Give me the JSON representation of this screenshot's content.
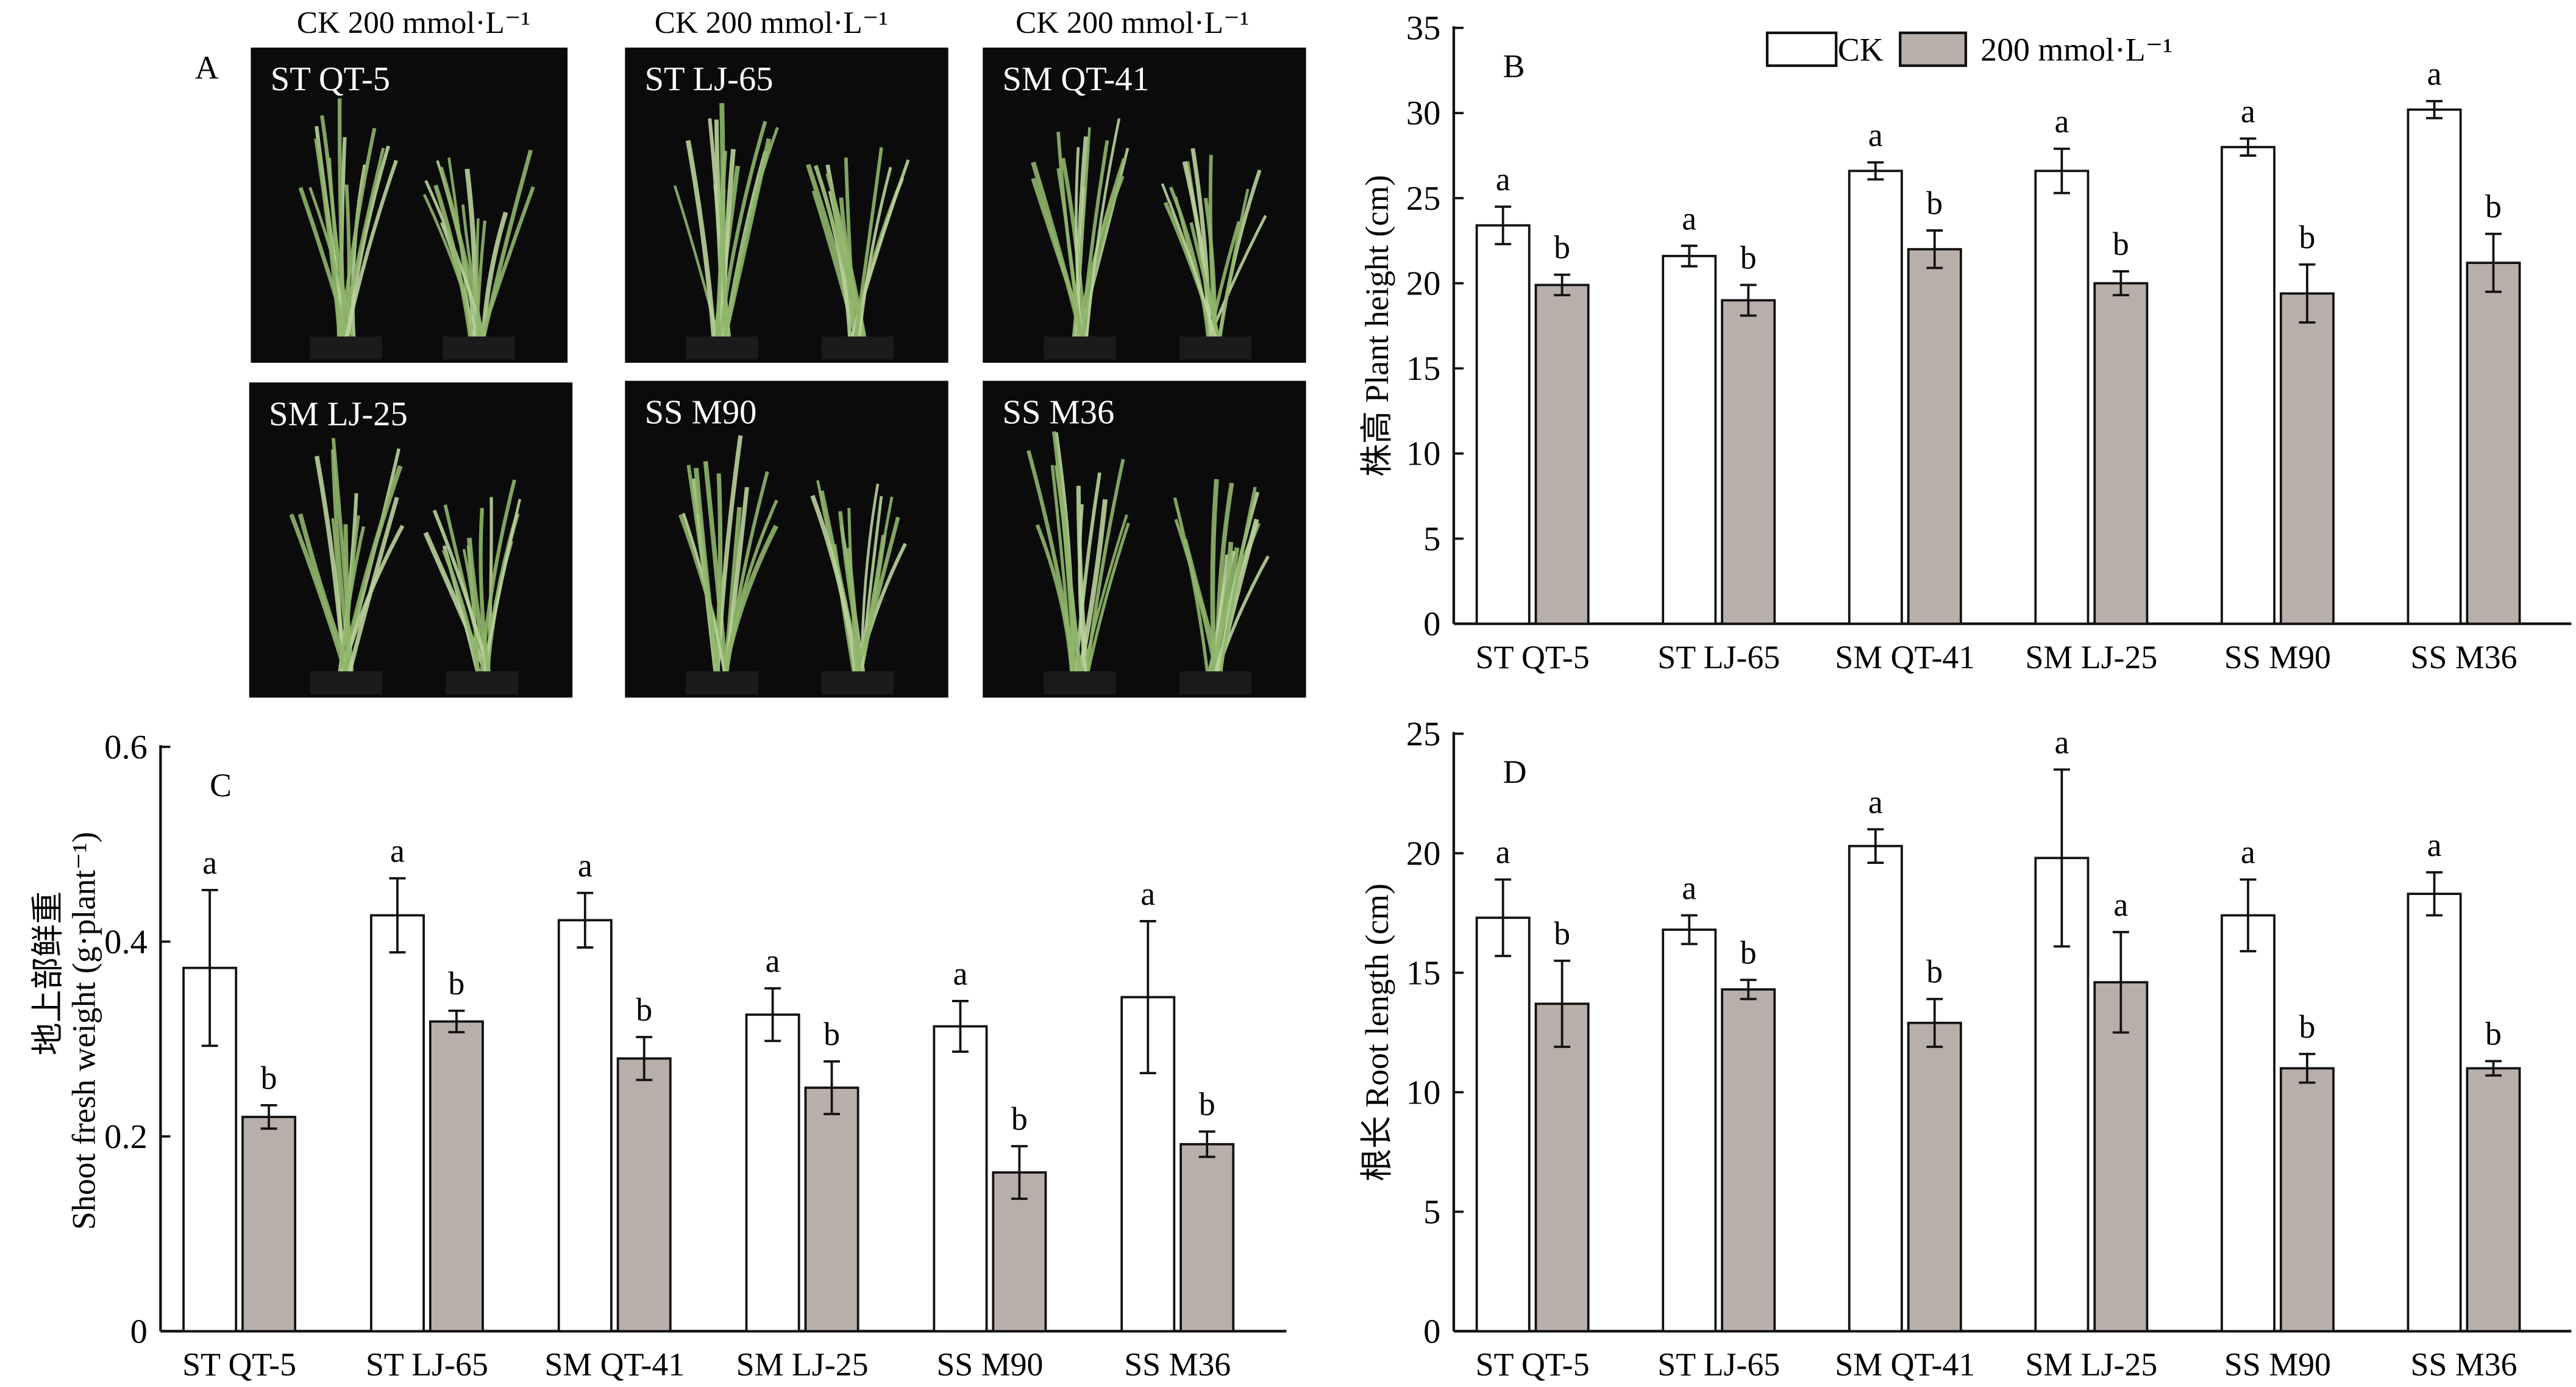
{
  "colors": {
    "ck": "#ffffff",
    "salt": "#b8aeaa",
    "axis": "#111111",
    "photo_bg": "#0b0b0b",
    "grass": "#8fb56a"
  },
  "panel_a": {
    "label": "A",
    "headers": [
      "CK 200 mmol·L⁻¹",
      "CK 200 mmol·L⁻¹",
      "CK 200 mmol·L⁻¹"
    ],
    "photos": [
      "ST QT-5",
      "ST LJ-65",
      "SM QT-41",
      "SM LJ-25",
      "SS M90",
      "SS M36"
    ]
  },
  "chart_data": [
    {
      "type": "bar",
      "panel": "B",
      "title": "",
      "xlabel": "",
      "ylabel": "株高 Plant height (cm)",
      "ylim": [
        0,
        35
      ],
      "yticks": [
        0,
        5,
        10,
        15,
        20,
        25,
        30,
        35
      ],
      "legend": {
        "placement": "top-center",
        "entries": [
          "CK",
          "200 mmol·L⁻¹"
        ]
      },
      "categories": [
        "ST QT-5",
        "ST LJ-65",
        "SM QT-41",
        "SM LJ-25",
        "SS M90",
        "SS M36"
      ],
      "series": [
        {
          "name": "CK",
          "values": [
            23.4,
            21.6,
            26.6,
            26.6,
            28.0,
            30.2
          ],
          "errors": [
            1.1,
            0.6,
            0.5,
            1.3,
            0.5,
            0.5
          ],
          "letters": [
            "a",
            "a",
            "a",
            "a",
            "a",
            "a"
          ]
        },
        {
          "name": "200 mmol·L⁻¹",
          "values": [
            19.9,
            19.0,
            22.0,
            20.0,
            19.4,
            21.2
          ],
          "errors": [
            0.6,
            0.9,
            1.1,
            0.7,
            1.7,
            1.7
          ],
          "letters": [
            "b",
            "b",
            "b",
            "b",
            "b",
            "b"
          ]
        }
      ]
    },
    {
      "type": "bar",
      "panel": "C",
      "title": "",
      "xlabel": "",
      "ylabel": "地上部鲜重",
      "ylabel2": "Shoot fresh weight (g·plant⁻¹)",
      "ylim": [
        0,
        0.6
      ],
      "yticks": [
        "0",
        "0.2",
        "0.4",
        "0.6"
      ],
      "categories": [
        "ST QT-5",
        "ST LJ-65",
        "SM QT-41",
        "SM LJ-25",
        "SS M90",
        "SS M36"
      ],
      "series": [
        {
          "name": "CK",
          "values": [
            0.373,
            0.427,
            0.422,
            0.325,
            0.313,
            0.343
          ],
          "errors": [
            0.08,
            0.038,
            0.028,
            0.027,
            0.026,
            0.078
          ],
          "letters": [
            "a",
            "a",
            "a",
            "a",
            "a",
            "a"
          ]
        },
        {
          "name": "200 mmol·L⁻¹",
          "values": [
            0.22,
            0.318,
            0.28,
            0.25,
            0.163,
            0.192
          ],
          "errors": [
            0.012,
            0.011,
            0.022,
            0.027,
            0.027,
            0.013
          ],
          "letters": [
            "b",
            "b",
            "b",
            "b",
            "b",
            "b"
          ]
        }
      ]
    },
    {
      "type": "bar",
      "panel": "D",
      "title": "",
      "xlabel": "",
      "ylabel": "根长 Root length (cm)",
      "ylim": [
        0,
        25
      ],
      "yticks": [
        0,
        5,
        10,
        15,
        20,
        25
      ],
      "categories": [
        "ST QT-5",
        "ST LJ-65",
        "SM QT-41",
        "SM LJ-25",
        "SS M90",
        "SS M36"
      ],
      "series": [
        {
          "name": "CK",
          "values": [
            17.3,
            16.8,
            20.3,
            19.8,
            17.4,
            18.3
          ],
          "errors": [
            1.6,
            0.6,
            0.7,
            3.7,
            1.5,
            0.9
          ],
          "letters": [
            "a",
            "a",
            "a",
            "a",
            "a",
            "a"
          ]
        },
        {
          "name": "200 mmol·L⁻¹",
          "values": [
            13.7,
            14.3,
            12.9,
            14.6,
            11.0,
            11.0
          ],
          "errors": [
            1.8,
            0.4,
            1.0,
            2.1,
            0.6,
            0.3
          ],
          "letters": [
            "b",
            "b",
            "b",
            "a",
            "b",
            "b"
          ]
        }
      ]
    }
  ]
}
